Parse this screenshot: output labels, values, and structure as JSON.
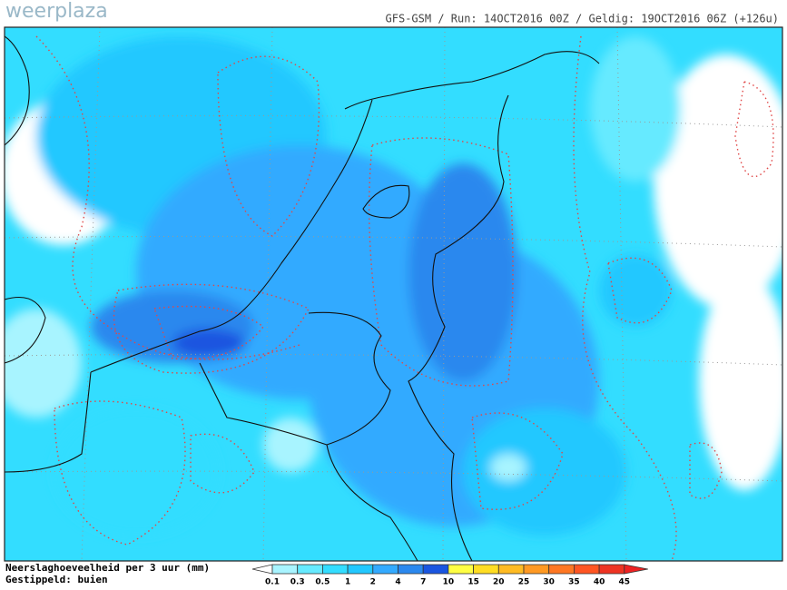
{
  "logo": "weerplaza",
  "header": "GFS-GSM / Run: 14OCT2016 00Z / Geldig: 19OCT2016 06Z (+126u)",
  "legend": {
    "title": "Neerslaghoeveelheid per 3 uur (mm)",
    "subtitle": "Gestippeld: buien",
    "labels": [
      0.1,
      0.3,
      0.5,
      1,
      2,
      4,
      7,
      10,
      15,
      20,
      25,
      30,
      35,
      40,
      45
    ],
    "colors": [
      "#ffffff",
      "#a8f4ff",
      "#66eaff",
      "#33ddff",
      "#22c8ff",
      "#33aaff",
      "#2b88ee",
      "#1a55e0",
      "#ffff44",
      "#ffdd22",
      "#ffbb22",
      "#ff9922",
      "#ff7722",
      "#ff5522",
      "#ee3322",
      "#ee2222"
    ]
  }
}
